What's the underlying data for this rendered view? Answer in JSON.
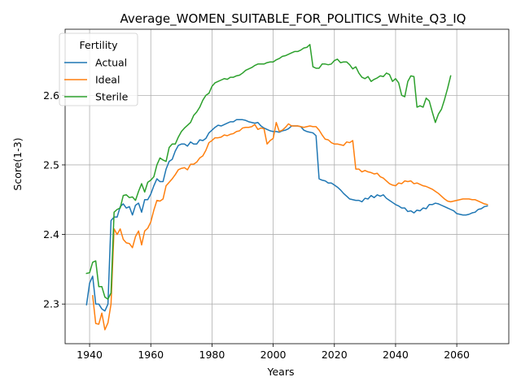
{
  "chart_data": {
    "type": "line",
    "title": "Average_WOMEN_SUITABLE_FOR_POLITICS_White_Q3_IQ",
    "xlabel": "Years",
    "ylabel": "Score(1-3)",
    "xlim": [
      1932,
      2077
    ],
    "ylim": [
      2.243,
      2.695
    ],
    "xticks": [
      1940,
      1960,
      1980,
      2000,
      2020,
      2040,
      2060
    ],
    "yticks": [
      2.3,
      2.4,
      2.5,
      2.6
    ],
    "ytick_labels": [
      "2.3",
      "2.4",
      "2.5",
      "2.6"
    ],
    "grid": true,
    "legend": {
      "title": "Fertility",
      "position": "top-left"
    },
    "series": [
      {
        "name": "Actual",
        "color": "#1f77b4",
        "x": [
          1939,
          1940,
          1941,
          1942,
          1943,
          1944,
          1945,
          1946,
          1947,
          1948,
          1949,
          1950,
          1951,
          1952,
          1953,
          1954,
          1955,
          1956,
          1957,
          1958,
          1959,
          1960,
          1961,
          1962,
          1963,
          1964,
          1965,
          1966,
          1967,
          1968,
          1969,
          1970,
          1971,
          1972,
          1973,
          1974,
          1975,
          1976,
          1977,
          1978,
          1979,
          1980,
          1981,
          1982,
          1983,
          1984,
          1985,
          1986,
          1987,
          1988,
          1989,
          1990,
          1991,
          1992,
          1993,
          1994,
          1995,
          1996,
          1997,
          1998,
          1999,
          2000,
          2001,
          2002,
          2003,
          2004,
          2005,
          2006,
          2007,
          2008,
          2009,
          2010,
          2011,
          2012,
          2013,
          2014,
          2015,
          2016,
          2017,
          2018,
          2019,
          2020,
          2021,
          2022,
          2023,
          2024,
          2025,
          2026,
          2027,
          2028,
          2029,
          2030,
          2031,
          2032,
          2033,
          2034,
          2035,
          2036,
          2037,
          2038,
          2039,
          2040,
          2041,
          2042,
          2043,
          2044,
          2045,
          2046,
          2047,
          2048,
          2049,
          2050,
          2051,
          2052,
          2053,
          2054,
          2055,
          2056,
          2057,
          2058,
          2059,
          2060,
          2061,
          2062,
          2063,
          2064,
          2065,
          2066,
          2067,
          2068,
          2069,
          2070
        ],
        "values": [
          2.299,
          2.33,
          2.34,
          2.3,
          2.3,
          2.293,
          2.29,
          2.3,
          2.42,
          2.425,
          2.425,
          2.44,
          2.444,
          2.438,
          2.44,
          2.428,
          2.442,
          2.445,
          2.432,
          2.45,
          2.45,
          2.458,
          2.47,
          2.48,
          2.476,
          2.476,
          2.494,
          2.505,
          2.508,
          2.52,
          2.528,
          2.53,
          2.53,
          2.527,
          2.533,
          2.53,
          2.53,
          2.536,
          2.535,
          2.538,
          2.546,
          2.55,
          2.554,
          2.557,
          2.556,
          2.558,
          2.56,
          2.562,
          2.562,
          2.565,
          2.565,
          2.565,
          2.564,
          2.562,
          2.561,
          2.56,
          2.561,
          2.556,
          2.553,
          2.551,
          2.549,
          2.548,
          2.548,
          2.547,
          2.549,
          2.55,
          2.552,
          2.556,
          2.556,
          2.556,
          2.555,
          2.55,
          2.548,
          2.547,
          2.546,
          2.542,
          2.48,
          2.478,
          2.477,
          2.474,
          2.474,
          2.471,
          2.468,
          2.464,
          2.459,
          2.455,
          2.451,
          2.45,
          2.449,
          2.449,
          2.447,
          2.452,
          2.451,
          2.456,
          2.453,
          2.457,
          2.455,
          2.457,
          2.452,
          2.449,
          2.446,
          2.443,
          2.441,
          2.438,
          2.438,
          2.433,
          2.434,
          2.431,
          2.435,
          2.434,
          2.438,
          2.437,
          2.443,
          2.443,
          2.445,
          2.444,
          2.442,
          2.44,
          2.438,
          2.436,
          2.434,
          2.43,
          2.429,
          2.428,
          2.428,
          2.429,
          2.431,
          2.432,
          2.436,
          2.437,
          2.44,
          2.441
        ]
      },
      {
        "name": "Ideal",
        "color": "#ff7f0e",
        "x": [
          1939,
          1940,
          1941,
          1942,
          1943,
          1944,
          1945,
          1946,
          1947,
          1948,
          1949,
          1950,
          1951,
          1952,
          1953,
          1954,
          1955,
          1956,
          1957,
          1958,
          1959,
          1960,
          1961,
          1962,
          1963,
          1964,
          1965,
          1966,
          1967,
          1968,
          1969,
          1970,
          1971,
          1972,
          1973,
          1974,
          1975,
          1976,
          1977,
          1978,
          1979,
          1980,
          1981,
          1982,
          1983,
          1984,
          1985,
          1986,
          1987,
          1988,
          1989,
          1990,
          1991,
          1992,
          1993,
          1994,
          1995,
          1996,
          1997,
          1998,
          1999,
          2000,
          2001,
          2002,
          2003,
          2004,
          2005,
          2006,
          2007,
          2008,
          2009,
          2010,
          2011,
          2012,
          2013,
          2014,
          2015,
          2016,
          2017,
          2018,
          2019,
          2020,
          2021,
          2022,
          2023,
          2024,
          2025,
          2026,
          2027,
          2028,
          2029,
          2030,
          2031,
          2032,
          2033,
          2034,
          2035,
          2036,
          2037,
          2038,
          2039,
          2040,
          2041,
          2042,
          2043,
          2044,
          2045,
          2046,
          2047,
          2048,
          2049,
          2050,
          2051,
          2052,
          2053,
          2054,
          2055,
          2056,
          2057,
          2058,
          2059,
          2060,
          2061,
          2062,
          2063,
          2064,
          2065,
          2066,
          2067,
          2068,
          2069,
          2070
        ],
        "values": [
          null,
          null,
          2.312,
          2.272,
          2.271,
          2.287,
          2.263,
          2.273,
          2.3,
          2.408,
          2.4,
          2.408,
          2.393,
          2.388,
          2.387,
          2.381,
          2.397,
          2.405,
          2.385,
          2.405,
          2.409,
          2.418,
          2.435,
          2.449,
          2.448,
          2.451,
          2.47,
          2.475,
          2.48,
          2.486,
          2.493,
          2.495,
          2.496,
          2.493,
          2.501,
          2.501,
          2.504,
          2.51,
          2.513,
          2.521,
          2.532,
          2.535,
          2.539,
          2.539,
          2.54,
          2.543,
          2.542,
          2.544,
          2.545,
          2.548,
          2.549,
          2.553,
          2.554,
          2.554,
          2.555,
          2.558,
          2.551,
          2.553,
          2.552,
          2.53,
          2.535,
          2.538,
          2.561,
          2.548,
          2.55,
          2.554,
          2.559,
          2.556,
          2.556,
          2.556,
          2.555,
          2.554,
          2.555,
          2.556,
          2.555,
          2.555,
          2.55,
          2.543,
          2.537,
          2.536,
          2.532,
          2.53,
          2.53,
          2.529,
          2.528,
          2.533,
          2.532,
          2.535,
          2.494,
          2.494,
          2.49,
          2.492,
          2.49,
          2.489,
          2.487,
          2.488,
          2.483,
          2.481,
          2.477,
          2.473,
          2.471,
          2.47,
          2.474,
          2.473,
          2.477,
          2.476,
          2.477,
          2.473,
          2.474,
          2.472,
          2.47,
          2.469,
          2.467,
          2.465,
          2.462,
          2.459,
          2.455,
          2.451,
          2.448,
          2.447,
          2.448,
          2.449,
          2.45,
          2.451,
          2.451,
          2.451,
          2.45,
          2.45,
          2.448,
          2.446,
          2.444,
          2.443
        ]
      },
      {
        "name": "Sterile",
        "color": "#2ca02c",
        "x": [
          1939,
          1940,
          1941,
          1942,
          1943,
          1944,
          1945,
          1946,
          1947,
          1948,
          1949,
          1950,
          1951,
          1952,
          1953,
          1954,
          1955,
          1956,
          1957,
          1958,
          1959,
          1960,
          1961,
          1962,
          1963,
          1964,
          1965,
          1966,
          1967,
          1968,
          1969,
          1970,
          1971,
          1972,
          1973,
          1974,
          1975,
          1976,
          1977,
          1978,
          1979,
          1980,
          1981,
          1982,
          1983,
          1984,
          1985,
          1986,
          1987,
          1988,
          1989,
          1990,
          1991,
          1992,
          1993,
          1994,
          1995,
          1996,
          1997,
          1998,
          1999,
          2000,
          2001,
          2002,
          2003,
          2004,
          2005,
          2006,
          2007,
          2008,
          2009,
          2010,
          2011,
          2012,
          2013,
          2014,
          2015,
          2016,
          2017,
          2018,
          2019,
          2020,
          2021,
          2022,
          2023,
          2024,
          2025,
          2026,
          2027,
          2028,
          2029,
          2030,
          2031,
          2032,
          2033,
          2034,
          2035,
          2036,
          2037,
          2038,
          2039,
          2040,
          2041,
          2042,
          2043,
          2044,
          2045,
          2046,
          2047,
          2048,
          2049,
          2050,
          2051,
          2052,
          2053,
          2054,
          2055,
          2056,
          2057,
          2058
        ],
        "values": [
          2.344,
          2.345,
          2.36,
          2.362,
          2.325,
          2.325,
          2.31,
          2.307,
          2.316,
          2.432,
          2.436,
          2.438,
          2.456,
          2.457,
          2.453,
          2.454,
          2.449,
          2.462,
          2.473,
          2.461,
          2.475,
          2.478,
          2.483,
          2.5,
          2.51,
          2.507,
          2.505,
          2.525,
          2.53,
          2.53,
          2.54,
          2.548,
          2.553,
          2.557,
          2.561,
          2.571,
          2.576,
          2.583,
          2.593,
          2.6,
          2.603,
          2.613,
          2.618,
          2.62,
          2.622,
          2.624,
          2.623,
          2.626,
          2.626,
          2.628,
          2.629,
          2.632,
          2.636,
          2.638,
          2.64,
          2.643,
          2.645,
          2.645,
          2.645,
          2.647,
          2.648,
          2.648,
          2.651,
          2.653,
          2.656,
          2.657,
          2.659,
          2.661,
          2.663,
          2.663,
          2.665,
          2.668,
          2.669,
          2.673,
          2.641,
          2.639,
          2.639,
          2.645,
          2.645,
          2.644,
          2.645,
          2.65,
          2.652,
          2.647,
          2.648,
          2.648,
          2.644,
          2.638,
          2.641,
          2.632,
          2.626,
          2.624,
          2.627,
          2.62,
          2.623,
          2.625,
          2.628,
          2.627,
          2.632,
          2.63,
          2.62,
          2.624,
          2.618,
          2.6,
          2.598,
          2.62,
          2.628,
          2.627,
          2.583,
          2.585,
          2.583,
          2.596,
          2.592,
          2.576,
          2.561,
          2.573,
          2.58,
          2.594,
          2.61,
          2.628
        ]
      }
    ]
  }
}
